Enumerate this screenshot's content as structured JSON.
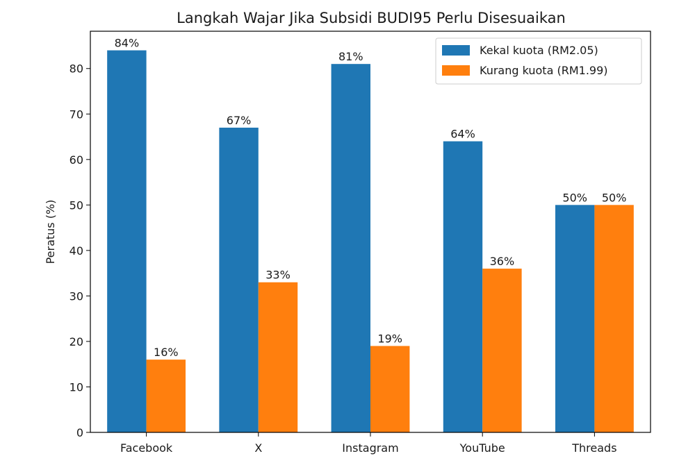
{
  "chart_data": {
    "type": "bar",
    "title": "Langkah Wajar Jika Subsidi BUDI95 Perlu Disesuaikan",
    "xlabel": "",
    "ylabel": "Peratus (%)",
    "categories": [
      "Facebook",
      "X",
      "Instagram",
      "YouTube",
      "Threads"
    ],
    "series": [
      {
        "name": "Kekal kuota (RM2.05)",
        "values": [
          84,
          67,
          81,
          64,
          50
        ],
        "labels": [
          "84%",
          "67%",
          "81%",
          "64%",
          "50%"
        ],
        "color": "#1f77b4"
      },
      {
        "name": "Kurang kuota (RM1.99)",
        "values": [
          16,
          33,
          19,
          36,
          50
        ],
        "labels": [
          "16%",
          "33%",
          "19%",
          "36%",
          "50%"
        ],
        "color": "#ff7f0e"
      }
    ],
    "ylim": [
      0,
      88.2
    ],
    "yticks": [
      0,
      10,
      20,
      30,
      40,
      50,
      60,
      70,
      80
    ],
    "grid": false,
    "legend": "top-right"
  }
}
